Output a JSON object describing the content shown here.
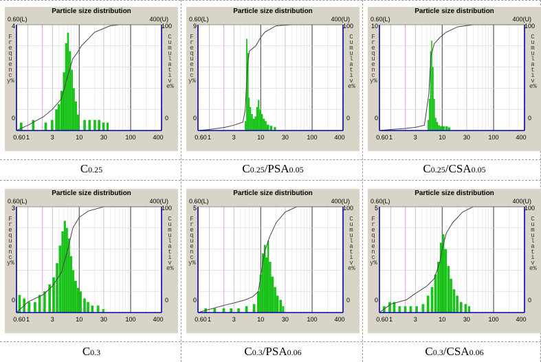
{
  "chart_data": [
    {
      "type": "bar",
      "title": "Particle size distribution",
      "caption": [
        "C",
        "0.25",
        "",
        ""
      ],
      "x_range_labels": {
        "lower": "0.60(L)",
        "upper": "400(U)"
      },
      "xlabels": [
        "0.60",
        "1",
        "3",
        "10",
        "30",
        "100",
        "400"
      ],
      "xscale": "log",
      "xlim": [
        0.6,
        400
      ],
      "ylabel": "Frequency%",
      "ylim": [
        0,
        4
      ],
      "yticks": [
        "4",
        "0"
      ],
      "y2label": "Cumulative%",
      "y2lim": [
        0,
        100
      ],
      "y2ticks": [
        "100",
        "0"
      ],
      "grid": true,
      "series": [
        {
          "values": [
            [
              0.7,
              0.3
            ],
            [
              1.2,
              0.4
            ],
            [
              2.1,
              0.3
            ],
            [
              2.8,
              0.4
            ],
            [
              3.4,
              0.8
            ],
            [
              3.8,
              1.0
            ],
            [
              4.3,
              1.5
            ],
            [
              4.8,
              2.2
            ],
            [
              5.3,
              3.3
            ],
            [
              5.8,
              3.7
            ],
            [
              6.3,
              3.0
            ],
            [
              6.9,
              2.3
            ],
            [
              7.5,
              1.6
            ],
            [
              8.2,
              1.1
            ],
            [
              9.0,
              0.6
            ],
            [
              12,
              0.4
            ],
            [
              15,
              0.4
            ],
            [
              19,
              0.4
            ],
            [
              23,
              0.4
            ],
            [
              28,
              0.3
            ],
            [
              34,
              0.3
            ]
          ]
        },
        {
          "values": [
            [
              0.6,
              0
            ],
            [
              1,
              5
            ],
            [
              2,
              13
            ],
            [
              3,
              20
            ],
            [
              4.5,
              30
            ],
            [
              6,
              52
            ],
            [
              7.5,
              68
            ],
            [
              9,
              73
            ],
            [
              11,
              80
            ],
            [
              20,
              93
            ],
            [
              40,
              99
            ],
            [
              60,
              100
            ],
            [
              400,
              100
            ]
          ]
        }
      ]
    },
    {
      "type": "bar",
      "title": "Particle size distribution",
      "caption": [
        "C",
        "0.25",
        "/PSA",
        "0.05"
      ],
      "x_range_labels": {
        "lower": "0.60(L)",
        "upper": "400(U)"
      },
      "xlabels": [
        "0.60",
        "1",
        "3",
        "10",
        "30",
        "100",
        "400"
      ],
      "xscale": "log",
      "xlim": [
        0.6,
        400
      ],
      "ylabel": "Frequency%",
      "ylim": [
        0,
        9
      ],
      "yticks": [
        "9",
        "0"
      ],
      "y2label": "Cumulative%",
      "y2lim": [
        0,
        100
      ],
      "y2ticks": [
        "100",
        "0"
      ],
      "grid": true,
      "series": [
        {
          "values": [
            [
              4.9,
              0.8
            ],
            [
              5.2,
              7.8
            ],
            [
              5.5,
              6.6
            ],
            [
              5.8,
              2.8
            ],
            [
              6.1,
              2.0
            ],
            [
              6.5,
              1.4
            ],
            [
              7.0,
              1.0
            ],
            [
              7.6,
              1.2
            ],
            [
              8.2,
              2.0
            ],
            [
              8.8,
              2.6
            ],
            [
              9.4,
              1.8
            ],
            [
              10.2,
              1.4
            ],
            [
              11,
              1.0
            ],
            [
              12,
              0.8
            ],
            [
              13,
              0.5
            ],
            [
              15,
              0.4
            ],
            [
              18,
              0.3
            ]
          ]
        },
        {
          "values": [
            [
              0.6,
              0
            ],
            [
              1,
              1
            ],
            [
              2,
              3
            ],
            [
              3,
              5
            ],
            [
              4.5,
              8
            ],
            [
              5,
              20
            ],
            [
              5.5,
              60
            ],
            [
              6,
              75
            ],
            [
              8,
              80
            ],
            [
              10,
              88
            ],
            [
              12,
              93
            ],
            [
              20,
              99
            ],
            [
              40,
              100
            ],
            [
              400,
              100
            ]
          ]
        }
      ]
    },
    {
      "type": "bar",
      "title": "Particle size distribution",
      "caption": [
        "C",
        "0.25",
        "/CSA",
        "0.05"
      ],
      "x_range_labels": {
        "lower": "0.60(L)",
        "upper": "400(U)"
      },
      "xlabels": [
        "0.60",
        "1",
        "3",
        "10",
        "30",
        "100",
        "400"
      ],
      "xscale": "log",
      "xlim": [
        0.6,
        400
      ],
      "ylabel": "Frequency%",
      "ylim": [
        0,
        10
      ],
      "yticks": [
        "10",
        "0"
      ],
      "y2label": "Cumulative%",
      "y2lim": [
        0,
        100
      ],
      "y2ticks": [
        "100",
        "0"
      ],
      "grid": true,
      "series": [
        {
          "values": [
            [
              5.2,
              1.0
            ],
            [
              5.5,
              3.0
            ],
            [
              5.8,
              7.5
            ],
            [
              6.1,
              8.5
            ],
            [
              6.4,
              6.0
            ],
            [
              6.8,
              3.0
            ],
            [
              7.2,
              1.2
            ],
            [
              7.7,
              0.8
            ],
            [
              8.3,
              0.5
            ],
            [
              9.0,
              0.4
            ],
            [
              10,
              0.4
            ],
            [
              11.5,
              0.4
            ],
            [
              13,
              0.3
            ]
          ]
        },
        {
          "values": [
            [
              0.6,
              0
            ],
            [
              1,
              1
            ],
            [
              2,
              2
            ],
            [
              3,
              3
            ],
            [
              4.5,
              5
            ],
            [
              5.5,
              35
            ],
            [
              6,
              70
            ],
            [
              7,
              82
            ],
            [
              9,
              88
            ],
            [
              12,
              93
            ],
            [
              20,
              98
            ],
            [
              40,
              100
            ],
            [
              400,
              100
            ]
          ]
        }
      ]
    },
    {
      "type": "bar",
      "title": "Particle size distribution",
      "caption": [
        "C",
        "0.3",
        "",
        ""
      ],
      "x_range_labels": {
        "lower": "0.60(L)",
        "upper": "400(U)"
      },
      "xlabels": [
        "0.60",
        "1",
        "3",
        "10",
        "30",
        "100",
        "400"
      ],
      "xscale": "log",
      "xlim": [
        0.6,
        400
      ],
      "ylabel": "Frequency%",
      "ylim": [
        0,
        3
      ],
      "yticks": [
        "3",
        "0"
      ],
      "y2label": "Cumulative%",
      "y2lim": [
        0,
        100
      ],
      "y2ticks": [
        "100",
        "0"
      ],
      "grid": true,
      "series": [
        {
          "values": [
            [
              0.65,
              0.5
            ],
            [
              0.8,
              0.4
            ],
            [
              1.0,
              0.3
            ],
            [
              1.3,
              0.3
            ],
            [
              1.6,
              0.5
            ],
            [
              2.0,
              0.6
            ],
            [
              2.5,
              0.8
            ],
            [
              3.0,
              1.0
            ],
            [
              3.5,
              1.4
            ],
            [
              4.0,
              1.9
            ],
            [
              4.5,
              2.3
            ],
            [
              5.0,
              2.6
            ],
            [
              5.5,
              2.4
            ],
            [
              6.0,
              2.1
            ],
            [
              6.6,
              1.6
            ],
            [
              7.3,
              1.2
            ],
            [
              8.0,
              0.9
            ],
            [
              9.0,
              0.7
            ],
            [
              10,
              0.6
            ],
            [
              12,
              0.4
            ],
            [
              14,
              0.3
            ],
            [
              17,
              0.2
            ],
            [
              22,
              0.2
            ],
            [
              28,
              0.1
            ]
          ]
        },
        {
          "values": [
            [
              0.6,
              0
            ],
            [
              1,
              10
            ],
            [
              2,
              17
            ],
            [
              3,
              25
            ],
            [
              4.5,
              38
            ],
            [
              6,
              60
            ],
            [
              7.5,
              80
            ],
            [
              10,
              90
            ],
            [
              15,
              96
            ],
            [
              30,
              100
            ],
            [
              400,
              100
            ]
          ]
        }
      ]
    },
    {
      "type": "bar",
      "title": "Particle size distribution",
      "caption": [
        "C",
        "0.3",
        "/PSA",
        "0.06"
      ],
      "x_range_labels": {
        "lower": "0.60(L)",
        "upper": "400(U)"
      },
      "xlabels": [
        "0.60",
        "1",
        "3",
        "10",
        "30",
        "100",
        "400"
      ],
      "xscale": "log",
      "xlim": [
        0.6,
        400
      ],
      "ylabel": "Frequency%",
      "ylim": [
        0,
        5
      ],
      "yticks": [
        "5",
        "0"
      ],
      "y2label": "Cumulative%",
      "y2lim": [
        0,
        100
      ],
      "y2ticks": [
        "100",
        "0"
      ],
      "grid": true,
      "series": [
        {
          "values": [
            [
              0.8,
              0.2
            ],
            [
              1.2,
              0.2
            ],
            [
              1.8,
              0.2
            ],
            [
              2.5,
              0.2
            ],
            [
              3.5,
              0.2
            ],
            [
              5,
              0.3
            ],
            [
              7,
              0.4
            ],
            [
              8.5,
              1.0
            ],
            [
              9.5,
              1.8
            ],
            [
              10.5,
              2.8
            ],
            [
              11.5,
              3.2
            ],
            [
              12.5,
              2.6
            ],
            [
              13.5,
              3.4
            ],
            [
              14.5,
              2.4
            ],
            [
              16,
              1.7
            ],
            [
              18,
              1.2
            ],
            [
              20,
              0.8
            ],
            [
              23,
              0.6
            ],
            [
              26,
              0.3
            ]
          ]
        },
        {
          "values": [
            [
              0.6,
              0
            ],
            [
              1,
              3
            ],
            [
              2,
              7
            ],
            [
              3,
              9
            ],
            [
              5,
              12
            ],
            [
              7,
              15
            ],
            [
              9,
              20
            ],
            [
              10,
              35
            ],
            [
              12,
              58
            ],
            [
              15,
              72
            ],
            [
              20,
              85
            ],
            [
              30,
              95
            ],
            [
              50,
              100
            ],
            [
              400,
              100
            ]
          ]
        }
      ]
    },
    {
      "type": "bar",
      "title": "Particle size distribution",
      "caption": [
        "C",
        "0.3",
        "/CSA",
        "0.06"
      ],
      "x_range_labels": {
        "lower": "0.60(L)",
        "upper": "400(U)"
      },
      "xlabels": [
        "0.60",
        "1",
        "3",
        "10",
        "30",
        "100",
        "400"
      ],
      "xscale": "log",
      "xlim": [
        0.6,
        400
      ],
      "ylabel": "Frequency%",
      "ylim": [
        0,
        5
      ],
      "yticks": [
        "5",
        "0"
      ],
      "y2label": "Cumulative%",
      "y2lim": [
        0,
        100
      ],
      "y2ticks": [
        "100",
        "0"
      ],
      "grid": true,
      "series": [
        {
          "values": [
            [
              0.7,
              0.3
            ],
            [
              0.9,
              0.5
            ],
            [
              1.1,
              0.5
            ],
            [
              1.4,
              0.3
            ],
            [
              1.8,
              0.3
            ],
            [
              2.3,
              0.3
            ],
            [
              3.0,
              0.3
            ],
            [
              4.0,
              0.4
            ],
            [
              5.0,
              0.8
            ],
            [
              6.0,
              1.2
            ],
            [
              7.0,
              1.8
            ],
            [
              8.0,
              2.4
            ],
            [
              9.0,
              3.3
            ],
            [
              10.0,
              3.7
            ],
            [
              11.0,
              3.0
            ],
            [
              12.5,
              2.2
            ],
            [
              14.0,
              1.6
            ],
            [
              16.0,
              1.1
            ],
            [
              18.5,
              0.8
            ],
            [
              22,
              0.5
            ],
            [
              27,
              0.4
            ],
            [
              32,
              0.3
            ]
          ]
        },
        {
          "values": [
            [
              0.6,
              0
            ],
            [
              1,
              8
            ],
            [
              2,
              12
            ],
            [
              3,
              18
            ],
            [
              5,
              25
            ],
            [
              7,
              32
            ],
            [
              9,
              48
            ],
            [
              10,
              60
            ],
            [
              12,
              75
            ],
            [
              16,
              85
            ],
            [
              25,
              95
            ],
            [
              40,
              100
            ],
            [
              400,
              100
            ]
          ]
        }
      ]
    }
  ]
}
